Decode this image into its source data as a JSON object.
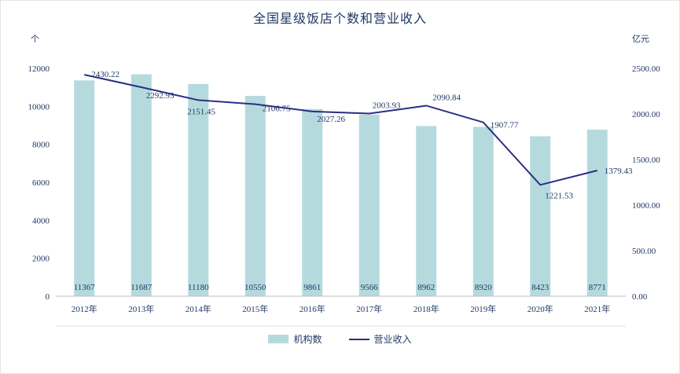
{
  "chart_data": {
    "type": "bar",
    "combo": "bar+line",
    "title": "全国星级饭店个数和营业收入",
    "categories": [
      "2012年",
      "2013年",
      "2014年",
      "2015年",
      "2016年",
      "2017年",
      "2018年",
      "2019年",
      "2020年",
      "2021年"
    ],
    "series": [
      {
        "name": "机构数",
        "type": "bar",
        "axis": "left",
        "values": [
          11367,
          11687,
          11180,
          10550,
          9861,
          9566,
          8962,
          8920,
          8423,
          8771
        ]
      },
      {
        "name": "营业收入",
        "type": "line",
        "axis": "right",
        "values": [
          2430.22,
          2292.93,
          2151.45,
          2106.75,
          2027.26,
          2003.93,
          2090.84,
          1907.77,
          1221.53,
          1379.43
        ]
      }
    ],
    "left_axis": {
      "unit": "个",
      "min": 0,
      "max": 12000,
      "ticks": [
        0,
        2000,
        4000,
        6000,
        8000,
        10000,
        12000
      ]
    },
    "right_axis": {
      "unit": "亿元",
      "min": 0,
      "max": 2500,
      "ticks": [
        "0.00",
        "500.00",
        "1000.00",
        "1500.00",
        "2000.00",
        "2500.00"
      ]
    },
    "legend_position": "bottom",
    "grid": false
  },
  "colors": {
    "bar": "#b5dadd",
    "line": "#2b2d84",
    "text": "#203864",
    "axis": "#bfbfbf",
    "divider": "#e0e0e0"
  }
}
